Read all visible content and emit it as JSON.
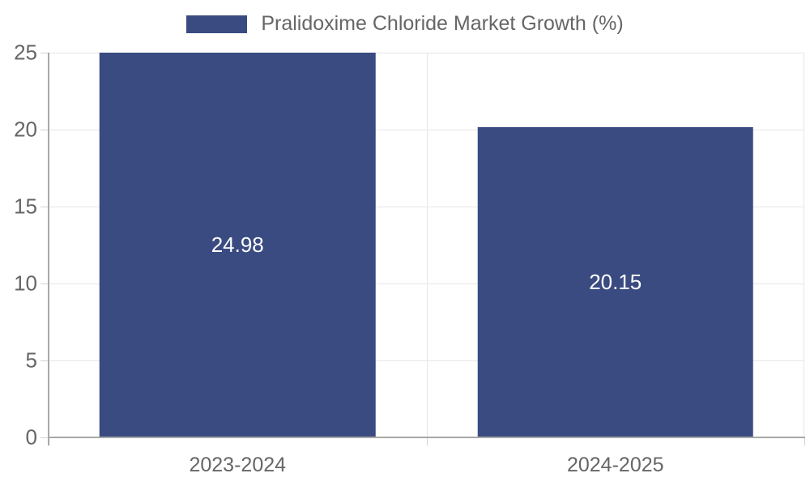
{
  "chart_data": {
    "type": "bar",
    "title": "Pralidoxime Chloride Market Growth (%)",
    "categories": [
      "2023-2024",
      "2024-2025"
    ],
    "series": [
      {
        "name": "Pralidoxime Chloride Market Growth (%)",
        "values": [
          24.98,
          20.15
        ]
      }
    ],
    "value_labels": [
      "24.98",
      "20.15"
    ],
    "xlabel": "",
    "ylabel": "",
    "ylim": [
      0,
      25
    ],
    "yticks": [
      0,
      5,
      10,
      15,
      20,
      25
    ],
    "grid": true,
    "legend_position": "top",
    "bar_width_fraction": 0.73
  },
  "colors": {
    "bar": "#3A4B81",
    "label_text": "#666666",
    "value_text": "#ffffff",
    "gridline": "#e6e6e6",
    "tick": "#d2d2d2",
    "axis": "#a8a8a8",
    "background": "#ffffff"
  }
}
